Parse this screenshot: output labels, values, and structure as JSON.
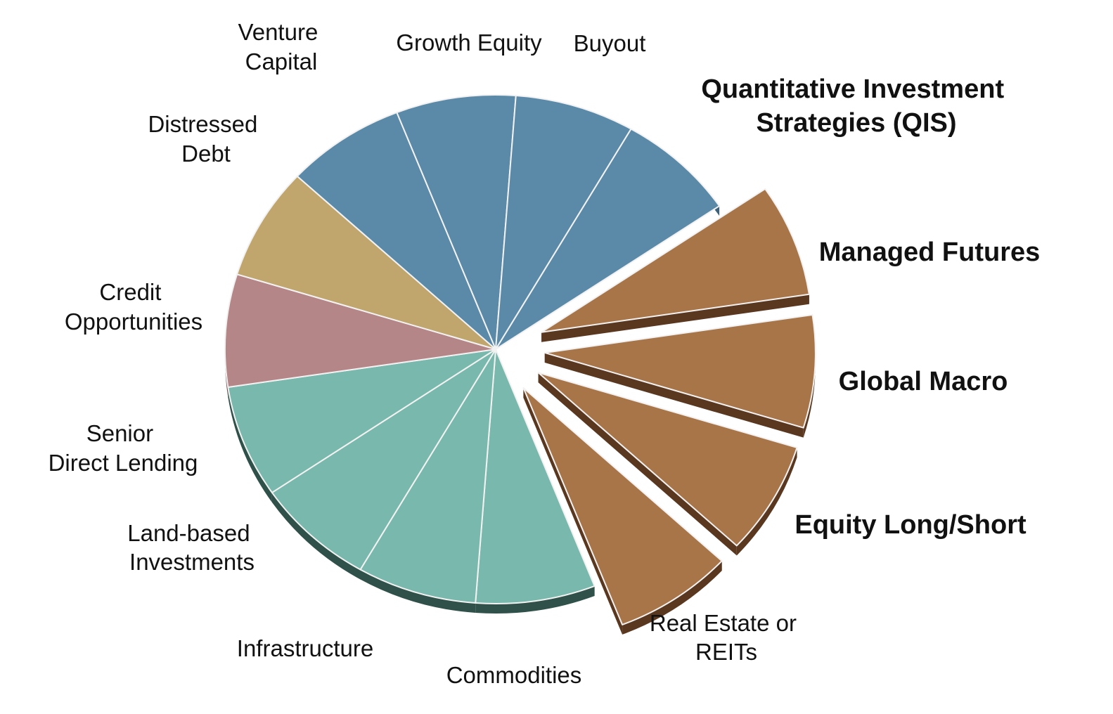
{
  "chart_data": {
    "type": "pie",
    "style": "3d exploded",
    "slices": [
      {
        "label": "Buyout",
        "value": 1,
        "group": "blue",
        "exploded": false
      },
      {
        "label": "Quantitative Investment Strategies (QIS)",
        "value": 1,
        "group": "brown",
        "exploded": true,
        "emphasis": true
      },
      {
        "label": "Managed Futures",
        "value": 1,
        "group": "brown",
        "exploded": true,
        "emphasis": true
      },
      {
        "label": "Global Macro",
        "value": 1,
        "group": "brown",
        "exploded": true,
        "emphasis": true
      },
      {
        "label": "Equity Long/Short",
        "value": 1,
        "group": "brown",
        "exploded": true,
        "emphasis": true
      },
      {
        "label": "Real Estate or REITs",
        "value": 1,
        "group": "teal",
        "exploded": false
      },
      {
        "label": "Commodities",
        "value": 1,
        "group": "teal",
        "exploded": false
      },
      {
        "label": "Infrastructure",
        "value": 1,
        "group": "teal",
        "exploded": false
      },
      {
        "label": "Land-based Investments",
        "value": 1,
        "group": "teal",
        "exploded": false
      },
      {
        "label": "Senior Direct Lending",
        "value": 1,
        "group": "pink",
        "exploded": false
      },
      {
        "label": "Credit Opportunities",
        "value": 1,
        "group": "gold",
        "exploded": false
      },
      {
        "label": "Distressed Debt",
        "value": 1,
        "group": "blue",
        "exploded": false
      },
      {
        "label": "Venture Capital",
        "value": 1,
        "group": "blue",
        "exploded": false
      },
      {
        "label": "Growth Equity",
        "value": 1,
        "group": "blue",
        "exploded": false
      }
    ],
    "colors": {
      "blue": "#5a8aa8",
      "brown": "#a87549",
      "teal": "#79b8ac",
      "pink": "#b58688",
      "gold": "#c0a56c"
    },
    "side_colors": {
      "blue": "#3b627a",
      "brown": "#5a3820",
      "teal": "#2f5149",
      "pink": "#6e4d4f",
      "gold": "#7d6a40"
    }
  }
}
